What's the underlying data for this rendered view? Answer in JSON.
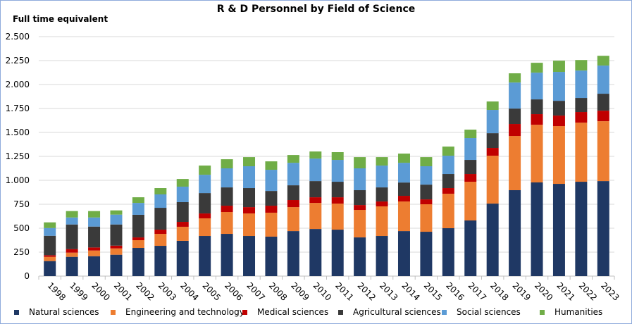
{
  "chart_data": {
    "type": "bar",
    "stacked": true,
    "title": "R & D Personnel by Field of Science",
    "xlabel": "",
    "ylabel": "Full time equivalent",
    "ylim": [
      0,
      2500
    ],
    "yticks": [
      0,
      250,
      500,
      750,
      1000,
      1250,
      1500,
      1750,
      2000,
      2250,
      2500
    ],
    "ytick_labels": [
      "0",
      "250",
      "500",
      "750",
      "1.000",
      "1.250",
      "1.500",
      "1.750",
      "2.000",
      "2.250",
      "2.500"
    ],
    "grid": true,
    "legend_position": "bottom",
    "categories": [
      "1998",
      "1999",
      "2000",
      "2001",
      "2002",
      "2003",
      "2004",
      "2005",
      "2006",
      "2007",
      "2008",
      "2009",
      "2010",
      "2011",
      "2012",
      "2013",
      "2014",
      "2015",
      "2016",
      "2017",
      "2018",
      "2019",
      "2020",
      "2021",
      "2022",
      "2023"
    ],
    "series": [
      {
        "name": "Natural sciences",
        "color": "#1f3864",
        "values": [
          157,
          201,
          208,
          223,
          294,
          316,
          368,
          419,
          441,
          419,
          412,
          470,
          492,
          485,
          404,
          419,
          470,
          463,
          500,
          581,
          757,
          897,
          978,
          963,
          985,
          992
        ]
      },
      {
        "name": "Engineering and technology",
        "color": "#ed7d31",
        "values": [
          44,
          44,
          59,
          66,
          81,
          125,
          147,
          184,
          228,
          235,
          250,
          250,
          272,
          272,
          287,
          309,
          309,
          287,
          360,
          404,
          500,
          566,
          602,
          603,
          617,
          625
        ]
      },
      {
        "name": "Medical sciences",
        "color": "#c00000",
        "values": [
          17,
          37,
          32,
          29,
          29,
          44,
          51,
          51,
          66,
          66,
          73,
          74,
          59,
          66,
          51,
          51,
          59,
          51,
          59,
          81,
          81,
          125,
          111,
          110,
          111,
          110
        ]
      },
      {
        "name": "Agricultural sciences",
        "color": "#3a3a3a",
        "values": [
          203,
          257,
          218,
          221,
          236,
          228,
          206,
          213,
          191,
          199,
          154,
          154,
          169,
          162,
          155,
          147,
          139,
          154,
          147,
          147,
          154,
          161,
          154,
          154,
          147,
          177
        ]
      },
      {
        "name": "Social sciences",
        "color": "#5b9bd5",
        "values": [
          81,
          73,
          95,
          103,
          124,
          140,
          162,
          191,
          199,
          228,
          221,
          235,
          235,
          228,
          228,
          228,
          206,
          192,
          191,
          228,
          243,
          272,
          279,
          302,
          286,
          294
        ]
      },
      {
        "name": "Humanities",
        "color": "#70ad47",
        "values": [
          59,
          67,
          67,
          44,
          59,
          66,
          80,
          96,
          95,
          95,
          88,
          81,
          74,
          81,
          117,
          88,
          96,
          95,
          95,
          88,
          88,
          96,
          103,
          117,
          110,
          102
        ]
      }
    ]
  }
}
